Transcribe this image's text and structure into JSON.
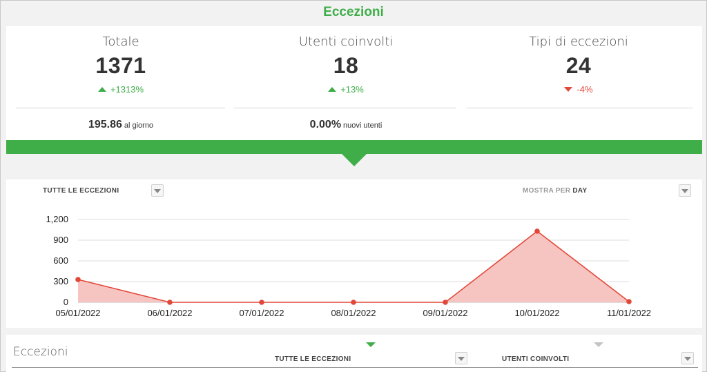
{
  "title": "Eccezioni",
  "colors": {
    "accent": "#3fae49",
    "negative": "#e2483a",
    "area_fill": "#f7c5c1"
  },
  "stats": [
    {
      "label": "Totale",
      "value": "1371",
      "delta": "+1313%",
      "direction": "up"
    },
    {
      "label": "Utenti coinvolti",
      "value": "18",
      "delta": "+13%",
      "direction": "up"
    },
    {
      "label": "Tipi di eccezioni",
      "value": "24",
      "delta": "-4%",
      "direction": "down"
    }
  ],
  "sub_stats": [
    {
      "value": "195.86",
      "suffix": "al giorno"
    },
    {
      "value": "0.00%",
      "suffix": "nuovi utenti"
    }
  ],
  "chart_controls": {
    "series_filter": "TUTTE LE ECCEZIONI",
    "show_by_prefix": "MOSTRA PER",
    "show_by_value": "DAY"
  },
  "chart_data": {
    "type": "area",
    "x": [
      "05/01/2022",
      "06/01/2022",
      "07/01/2022",
      "08/01/2022",
      "09/01/2022",
      "10/01/2022",
      "11/01/2022"
    ],
    "values": [
      330,
      0,
      0,
      0,
      0,
      1030,
      10
    ],
    "y_ticks": [
      "0",
      "300",
      "600",
      "900",
      "1,200"
    ],
    "ylim": [
      0,
      1200
    ],
    "grid": true
  },
  "table": {
    "title": "Eccezioni",
    "columns": [
      "TUTTE LE ECCEZIONI",
      "UTENTI COINVOLTI"
    ]
  }
}
